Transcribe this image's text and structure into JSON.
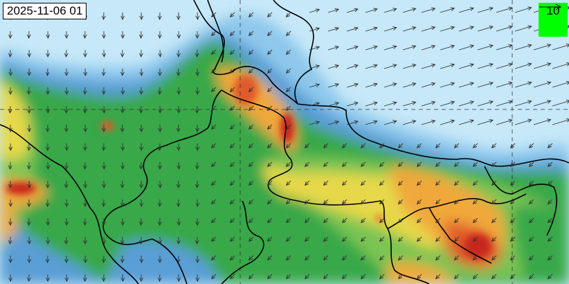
{
  "timestamp": "2025-11-06 01",
  "wind_legend": {
    "value": "10",
    "background": "#00ff00",
    "icon": "arrow-right-icon"
  },
  "colors": {
    "very_low": "#c6e8f8",
    "low": "#8ec8ec",
    "low_mid": "#5a9ed6",
    "moderate": "#38a84a",
    "moderate_high": "#7cc452",
    "high": "#e6d84a",
    "very_high": "#f0a83a",
    "severe": "#e05a2a",
    "extreme": "#c8281e"
  }
}
